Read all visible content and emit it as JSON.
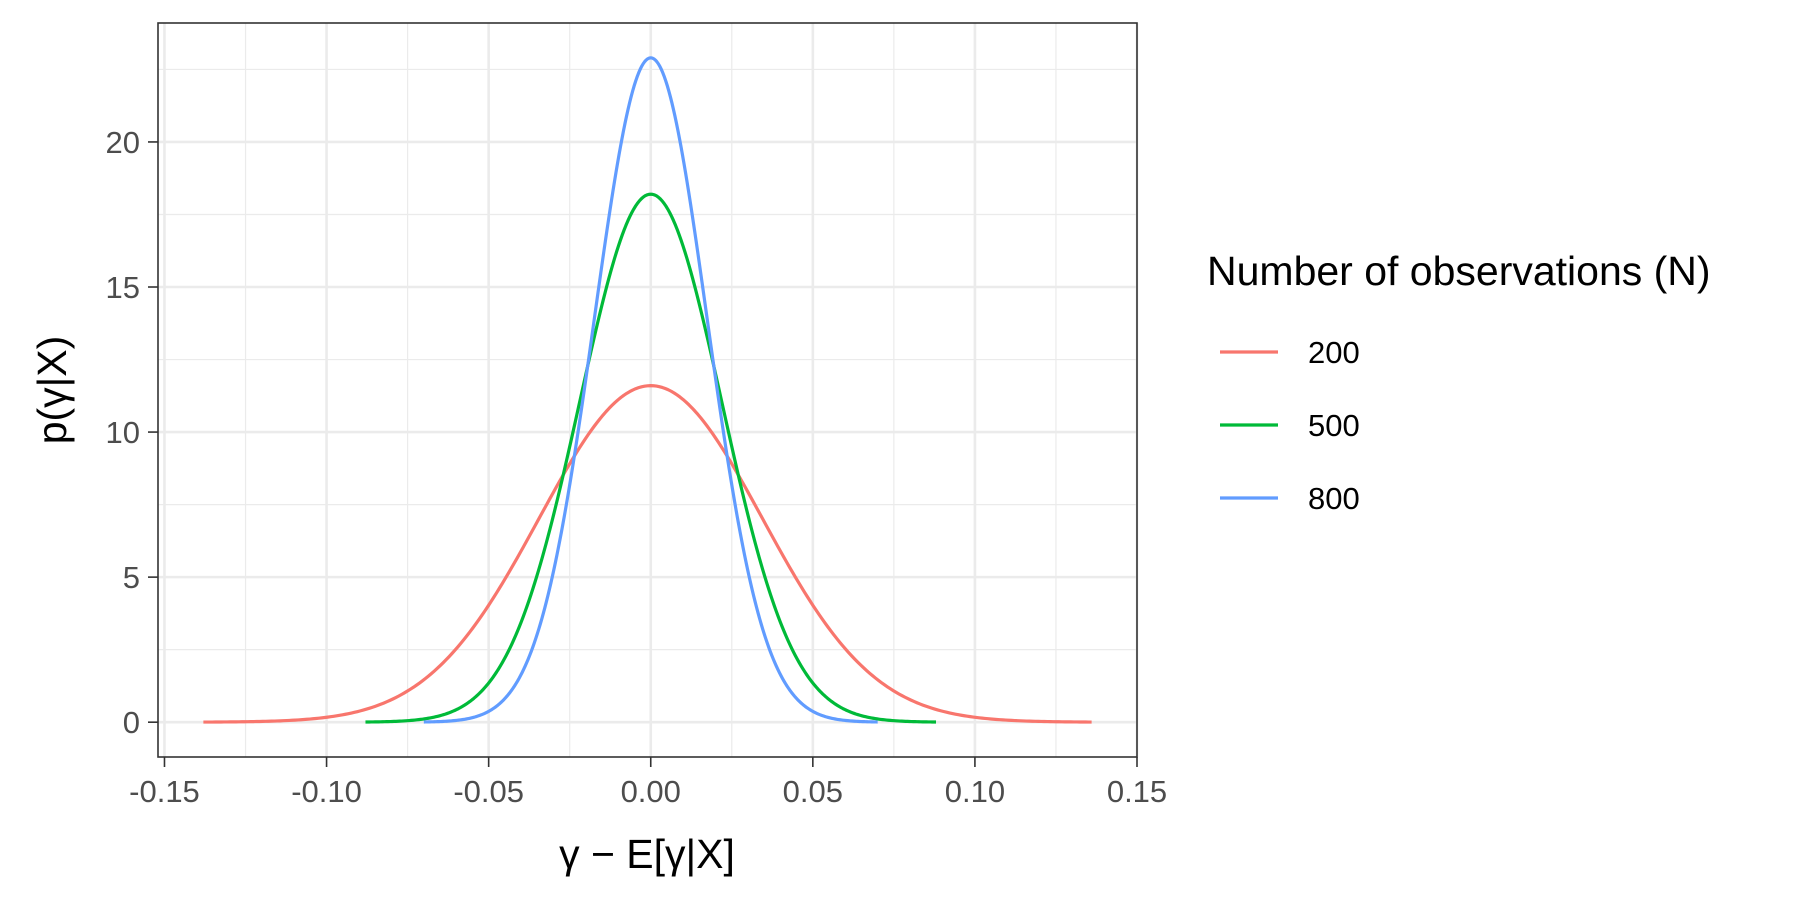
{
  "chart_data": {
    "type": "line",
    "title": "",
    "xlabel": "γ − E[γ|X]",
    "ylabel": "p(γ|X)",
    "xlim": [
      -0.152,
      0.15
    ],
    "ylim": [
      -1.2,
      24.1
    ],
    "x_ticks": [
      -0.15,
      -0.1,
      -0.05,
      0.0,
      0.05,
      0.1,
      0.15
    ],
    "x_tick_labels": [
      "-0.15",
      "-0.10",
      "-0.05",
      "0.00",
      "0.05",
      "0.10",
      "0.15"
    ],
    "y_ticks": [
      0,
      5,
      10,
      15,
      20
    ],
    "y_tick_labels": [
      "0",
      "5",
      "10",
      "15",
      "20"
    ],
    "grid": true,
    "legend": {
      "title": "Number of observations (N)",
      "placement": "right"
    },
    "series": [
      {
        "name": "200",
        "color": "#F8766D",
        "mean": 0.0,
        "peak": 11.6,
        "x_range": [
          -0.138,
          0.136
        ]
      },
      {
        "name": "500",
        "color": "#00BA38",
        "mean": 0.0,
        "peak": 18.2,
        "x_range": [
          -0.088,
          0.088
        ]
      },
      {
        "name": "800",
        "color": "#619CFF",
        "mean": 0.0,
        "peak": 22.9,
        "x_range": [
          -0.07,
          0.07
        ]
      }
    ]
  }
}
